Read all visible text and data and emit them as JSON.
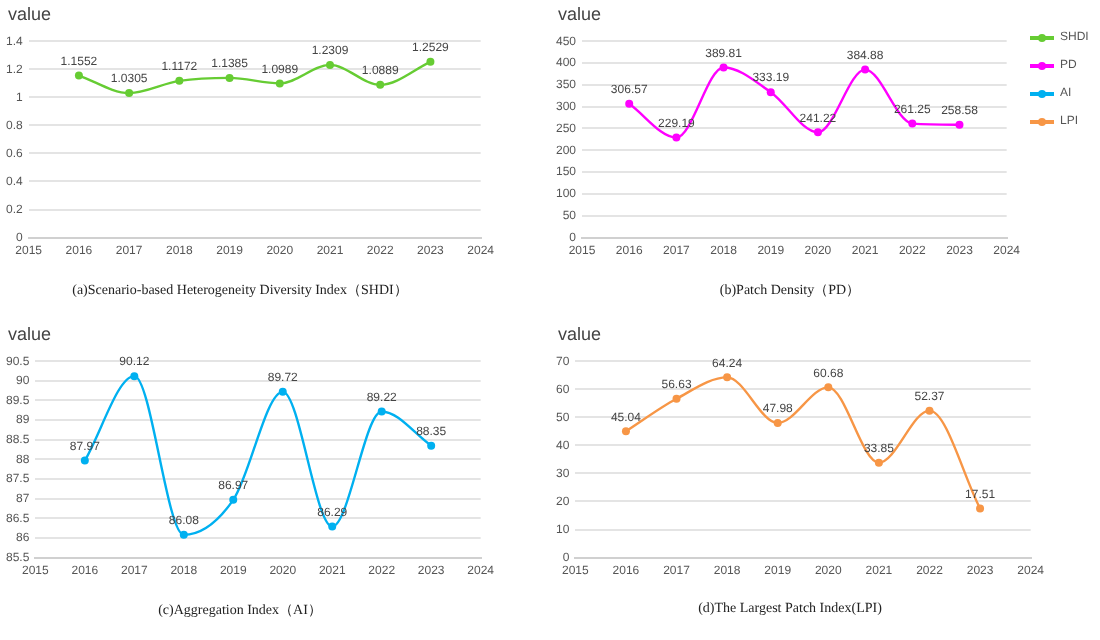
{
  "chart_data": [
    {
      "type": "line",
      "title": "(a)Scenario-based Heterogeneity Diversity Index（SHDI）",
      "ylabel": "value",
      "x": [
        2016,
        2017,
        2018,
        2019,
        2020,
        2021,
        2022,
        2023
      ],
      "series": [
        {
          "name": "SHDI",
          "color": "#66cc33",
          "values": [
            1.1552,
            1.0305,
            1.1172,
            1.1385,
            1.0989,
            1.2309,
            1.0889,
            1.2529
          ]
        }
      ],
      "xlim": [
        2015,
        2024
      ],
      "xticks": [
        2015,
        2016,
        2017,
        2018,
        2019,
        2020,
        2021,
        2022,
        2023,
        2024
      ],
      "ylim": [
        0,
        1.4
      ],
      "yticks": [
        0,
        0.2,
        0.4,
        0.6,
        0.8,
        1,
        1.2,
        1.4
      ],
      "grid": "y",
      "marker": "circle",
      "data_labels": true
    },
    {
      "type": "line",
      "title": "(b)Patch Density（PD）",
      "ylabel": "value",
      "x": [
        2016,
        2017,
        2018,
        2019,
        2020,
        2021,
        2022,
        2023
      ],
      "series": [
        {
          "name": "PD",
          "color": "#ff00ff",
          "values": [
            306.57,
            229.19,
            389.81,
            333.19,
            241.22,
            384.88,
            261.25,
            258.58
          ]
        }
      ],
      "xlim": [
        2015,
        2024
      ],
      "xticks": [
        2015,
        2016,
        2017,
        2018,
        2019,
        2020,
        2021,
        2022,
        2023,
        2024
      ],
      "ylim": [
        0,
        450
      ],
      "yticks": [
        0,
        50,
        100,
        150,
        200,
        250,
        300,
        350,
        400,
        450
      ],
      "grid": "y",
      "marker": "circle",
      "data_labels": true,
      "legend": "right"
    },
    {
      "type": "line",
      "title": "(c)Aggregation Index（AI）",
      "ylabel": "value",
      "x": [
        2016,
        2017,
        2018,
        2019,
        2020,
        2021,
        2022,
        2023
      ],
      "series": [
        {
          "name": "AI",
          "color": "#00b0f0",
          "values": [
            87.97,
            90.12,
            86.08,
            86.97,
            89.72,
            86.29,
            89.22,
            88.35
          ]
        }
      ],
      "xlim": [
        2015,
        2024
      ],
      "xticks": [
        2015,
        2016,
        2017,
        2018,
        2019,
        2020,
        2021,
        2022,
        2023,
        2024
      ],
      "ylim": [
        85.5,
        90.5
      ],
      "yticks": [
        85.5,
        86,
        86.5,
        87,
        87.5,
        88,
        88.5,
        89,
        89.5,
        90,
        90.5
      ],
      "grid": "y",
      "marker": "circle",
      "data_labels": true
    },
    {
      "type": "line",
      "title": "(d)The Largest Patch Index(LPI)",
      "ylabel": "value",
      "x": [
        2016,
        2017,
        2018,
        2019,
        2020,
        2021,
        2022,
        2023
      ],
      "series": [
        {
          "name": "LPI",
          "color": "#f79646",
          "values": [
            45.04,
            56.63,
            64.24,
            47.98,
            60.68,
            33.85,
            52.37,
            17.51
          ]
        }
      ],
      "xlim": [
        2015,
        2024
      ],
      "xticks": [
        2015,
        2016,
        2017,
        2018,
        2019,
        2020,
        2021,
        2022,
        2023,
        2024
      ],
      "ylim": [
        0,
        70
      ],
      "yticks": [
        0,
        10,
        20,
        30,
        40,
        50,
        60,
        70
      ],
      "grid": "y",
      "marker": "circle",
      "data_labels": true
    }
  ]
}
